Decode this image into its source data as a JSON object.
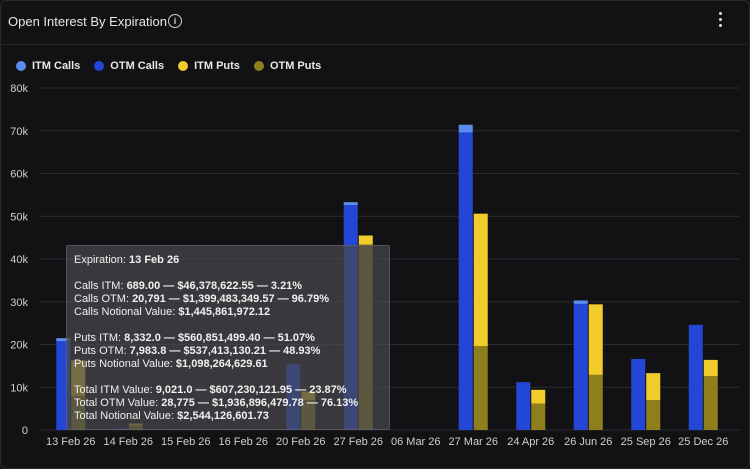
{
  "header": {
    "title": "Open Interest By Expiration"
  },
  "legend": [
    {
      "label": "ITM Calls",
      "color": "#5b8def"
    },
    {
      "label": "OTM Calls",
      "color": "#2346d6"
    },
    {
      "label": "ITM Puts",
      "color": "#f1cc2b"
    },
    {
      "label": "OTM Puts",
      "color": "#8f7e1c"
    }
  ],
  "chart_data": {
    "type": "bar",
    "stacked": true,
    "grid": "horizontal",
    "legend_position": "top-left",
    "ylim": [
      0,
      80000
    ],
    "yticks": [
      "0",
      "10k",
      "20k",
      "30k",
      "40k",
      "50k",
      "60k",
      "70k",
      "80k"
    ],
    "categories": [
      "13 Feb 26",
      "14 Feb 26",
      "15 Feb 26",
      "16 Feb 26",
      "20 Feb 26",
      "27 Feb 26",
      "06 Mar 26",
      "27 Mar 26",
      "24 Apr 26",
      "26 Jun 26",
      "25 Sep 26",
      "25 Dec 26"
    ],
    "series": [
      {
        "name": "ITM Calls",
        "group": "calls",
        "values": [
          689,
          0,
          0,
          0,
          0,
          700,
          0,
          1800,
          0,
          800,
          0,
          0
        ]
      },
      {
        "name": "OTM Calls",
        "group": "calls",
        "values": [
          20791,
          300,
          200,
          200,
          15500,
          52600,
          0,
          69600,
          11200,
          29500,
          16600,
          24600
        ]
      },
      {
        "name": "ITM Puts",
        "group": "puts",
        "values": [
          8332,
          300,
          0,
          0,
          2000,
          2100,
          0,
          31000,
          3200,
          16500,
          6300,
          3800
        ]
      },
      {
        "name": "OTM Puts",
        "group": "puts",
        "values": [
          7984,
          1200,
          0,
          0,
          7000,
          43400,
          0,
          19600,
          6200,
          12900,
          7000,
          12600
        ]
      }
    ]
  },
  "tooltip": {
    "expiration_label": "Expiration:",
    "expiration_value": "13 Feb 26",
    "calls_itm_label": "Calls ITM:",
    "calls_itm_value": "689.00 — $46,378,622.55 — 3.21%",
    "calls_otm_label": "Calls OTM:",
    "calls_otm_value": "20,791 — $1,399,483,349.57 — 96.79%",
    "calls_notional_label": "Calls Notional Value:",
    "calls_notional_value": "$1,445,861,972.12",
    "puts_itm_label": "Puts ITM:",
    "puts_itm_value": "8,332.0 — $560,851,499.40 — 51.07%",
    "puts_otm_label": "Puts OTM:",
    "puts_otm_value": "7,983.8 — $537,413,130.21 — 48.93%",
    "puts_notional_label": "Puts Notional Value:",
    "puts_notional_value": "$1,098,264,629.61",
    "total_itm_label": "Total ITM Value:",
    "total_itm_value": "9,021.0 — $607,230,121.95 — 23.87%",
    "total_otm_label": "Total OTM Value:",
    "total_otm_value": "28,775 — $1,936,896,479.78 — 76.13%",
    "total_notional_label": "Total Notional Value:",
    "total_notional_value": "$2,544,126,601.73"
  }
}
